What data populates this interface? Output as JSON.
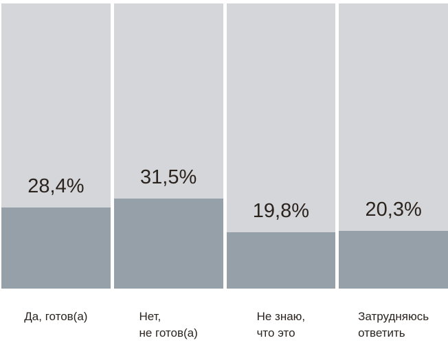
{
  "chart_data": {
    "type": "bar",
    "title": "",
    "xlabel": "",
    "ylabel": "",
    "ylim": [
      0,
      100
    ],
    "grid": false,
    "legend_position": "none",
    "categories": [
      "Да, готов(а)",
      "Нет,\nне готов(а)",
      "Не знаю,\nчто это",
      "Затрудняюсь\nответить"
    ],
    "values": [
      28.4,
      31.5,
      19.8,
      20.3
    ],
    "value_labels": [
      "28,4%",
      "31,5%",
      "19,8%",
      "20,3%"
    ],
    "colors": {
      "track": "#d5d6d9",
      "fill": "#96a0a8",
      "label_text": "#2b231e",
      "background": "#ffffff"
    }
  }
}
